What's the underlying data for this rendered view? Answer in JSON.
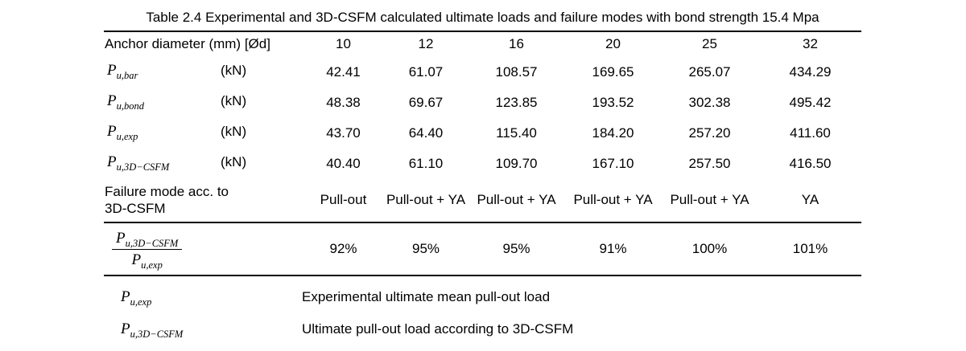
{
  "title": "Table 2.4 Experimental and 3D-CSFM calculated ultimate loads and failure modes with bond strength 15.4 Mpa",
  "header": {
    "label": "Anchor diameter (mm) [Ød]",
    "columns": [
      "10",
      "12",
      "16",
      "20",
      "25",
      "32"
    ]
  },
  "rows": [
    {
      "symbol_base": "P",
      "symbol_sub": "u,bar",
      "unit": "(kN)",
      "values": [
        "42.41",
        "61.07",
        "108.57",
        "169.65",
        "265.07",
        "434.29"
      ]
    },
    {
      "symbol_base": "P",
      "symbol_sub": "u,bond",
      "unit": "(kN)",
      "values": [
        "48.38",
        "69.67",
        "123.85",
        "193.52",
        "302.38",
        "495.42"
      ]
    },
    {
      "symbol_base": "P",
      "symbol_sub": "u,exp",
      "unit": "(kN)",
      "values": [
        "43.70",
        "64.40",
        "115.40",
        "184.20",
        "257.20",
        "411.60"
      ]
    },
    {
      "symbol_base": "P",
      "symbol_sub": "u,3D−CSFM",
      "unit": "(kN)",
      "values": [
        "40.40",
        "61.10",
        "109.70",
        "167.10",
        "257.50",
        "416.50"
      ]
    }
  ],
  "failure_row": {
    "label_line1": "Failure mode acc. to",
    "label_line2": "3D-CSFM",
    "values": [
      "Pull-out",
      "Pull-out + YA",
      "Pull-out + YA",
      "Pull-out + YA",
      "Pull-out + YA",
      "YA"
    ]
  },
  "ratio_row": {
    "numerator_base": "P",
    "numerator_sub": "u,3D−CSFM",
    "denominator_base": "P",
    "denominator_sub": "u,exp",
    "values": [
      "92%",
      "95%",
      "95%",
      "91%",
      "100%",
      "101%"
    ]
  },
  "footnotes": [
    {
      "symbol_base": "P",
      "symbol_sub": "u,exp",
      "description": "Experimental ultimate mean pull-out load"
    },
    {
      "symbol_base": "P",
      "symbol_sub": "u,3D−CSFM",
      "description": "Ultimate pull-out load according to 3D-CSFM"
    }
  ],
  "colors": {
    "text": "#000000",
    "rule": "#000000",
    "background": "#ffffff"
  }
}
